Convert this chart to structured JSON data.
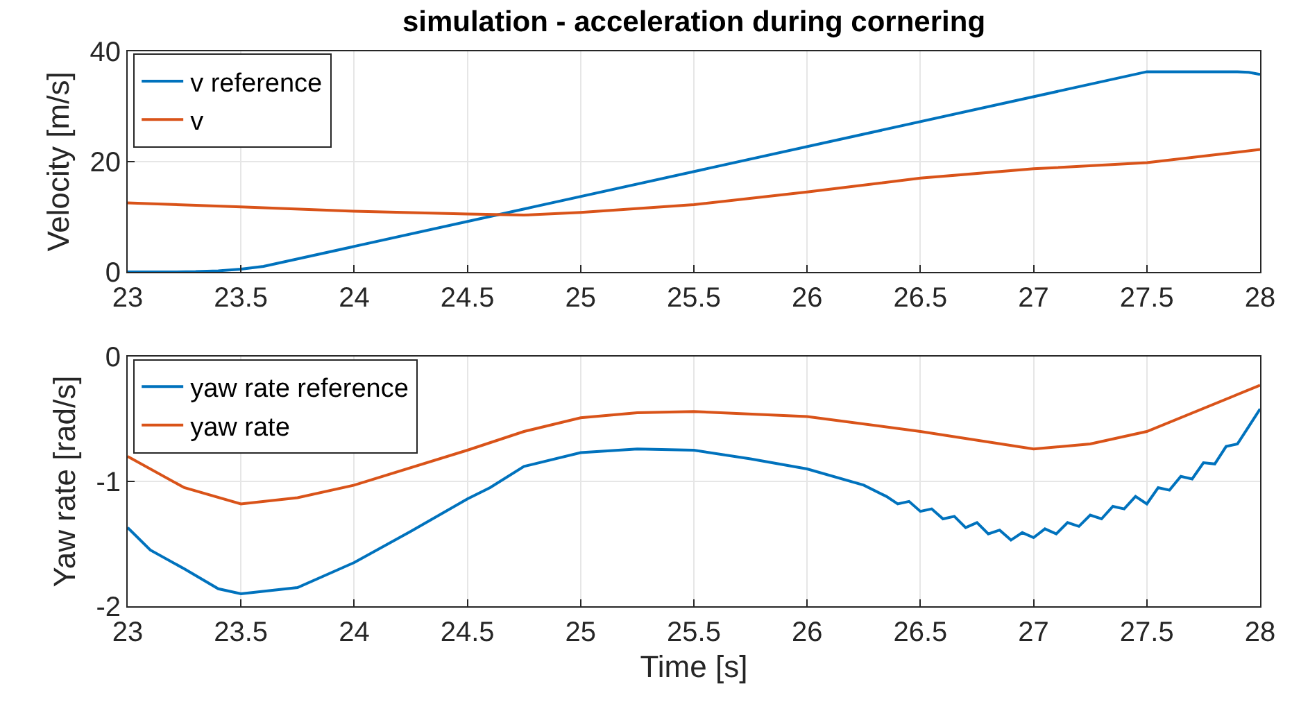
{
  "chart_data": [
    {
      "type": "line",
      "title": "simulation - acceleration during cornering",
      "ylabel": "Velocity [m/s]",
      "xlim": [
        23,
        28
      ],
      "xticks": [
        23,
        23.5,
        24,
        24.5,
        25,
        25.5,
        26,
        26.5,
        27,
        27.5,
        28
      ],
      "ylim": [
        0,
        40
      ],
      "yticks": [
        0,
        20,
        40
      ],
      "grid": true,
      "legend": "top left",
      "series": [
        {
          "name": "v reference",
          "color": "#0072bd",
          "x": [
            23,
            23.2,
            23.3,
            23.4,
            23.5,
            23.6,
            27.5,
            27.9,
            27.95,
            28
          ],
          "values": [
            0,
            0,
            0.05,
            0.2,
            0.5,
            1,
            36.3,
            36.3,
            36.2,
            35.8
          ]
        },
        {
          "name": "v",
          "color": "#d95319",
          "x": [
            23,
            23.5,
            24,
            24.5,
            24.75,
            25,
            25.5,
            26,
            26.5,
            27,
            27.5,
            28
          ],
          "values": [
            12.5,
            11.8,
            11,
            10.5,
            10.3,
            10.8,
            12.2,
            14.5,
            17,
            18.7,
            19.8,
            22.2
          ]
        }
      ]
    },
    {
      "type": "line",
      "xlabel": "Time [s]",
      "ylabel": "Yaw rate [rad/s]",
      "xlim": [
        23,
        28
      ],
      "xticks": [
        23,
        23.5,
        24,
        24.5,
        25,
        25.5,
        26,
        26.5,
        27,
        27.5,
        28
      ],
      "ylim": [
        -2,
        0
      ],
      "yticks": [
        -2,
        -1,
        0
      ],
      "grid": true,
      "legend": "top left",
      "series": [
        {
          "name": "yaw rate reference",
          "color": "#0072bd",
          "x": [
            23,
            23.1,
            23.25,
            23.4,
            23.5,
            23.75,
            24,
            24.25,
            24.5,
            24.6,
            24.75,
            25,
            25.25,
            25.5,
            25.75,
            26,
            26.25,
            26.35,
            26.4,
            26.45,
            26.5,
            26.55,
            26.6,
            26.65,
            26.7,
            26.75,
            26.8,
            26.85,
            26.9,
            26.95,
            27,
            27.05,
            27.1,
            27.15,
            27.2,
            27.25,
            27.3,
            27.35,
            27.4,
            27.45,
            27.5,
            27.55,
            27.6,
            27.65,
            27.7,
            27.75,
            27.8,
            27.85,
            27.9,
            27.95,
            28
          ],
          "values": [
            -1.37,
            -1.55,
            -1.7,
            -1.86,
            -1.9,
            -1.85,
            -1.65,
            -1.4,
            -1.14,
            -1.05,
            -0.88,
            -0.77,
            -0.74,
            -0.75,
            -0.82,
            -0.9,
            -1.03,
            -1.12,
            -1.18,
            -1.16,
            -1.24,
            -1.22,
            -1.3,
            -1.28,
            -1.37,
            -1.33,
            -1.42,
            -1.39,
            -1.47,
            -1.41,
            -1.45,
            -1.38,
            -1.42,
            -1.33,
            -1.36,
            -1.27,
            -1.3,
            -1.2,
            -1.22,
            -1.12,
            -1.18,
            -1.05,
            -1.07,
            -0.96,
            -0.98,
            -0.85,
            -0.86,
            -0.72,
            -0.7,
            -0.56,
            -0.42
          ]
        },
        {
          "name": "yaw rate",
          "color": "#d95319",
          "x": [
            23,
            23.25,
            23.5,
            23.75,
            24,
            24.5,
            24.75,
            25,
            25.25,
            25.5,
            26,
            26.5,
            27,
            27.25,
            27.5,
            28
          ],
          "values": [
            -0.8,
            -1.05,
            -1.18,
            -1.13,
            -1.03,
            -0.75,
            -0.6,
            -0.49,
            -0.45,
            -0.44,
            -0.48,
            -0.6,
            -0.74,
            -0.7,
            -0.6,
            -0.23
          ]
        }
      ]
    }
  ]
}
